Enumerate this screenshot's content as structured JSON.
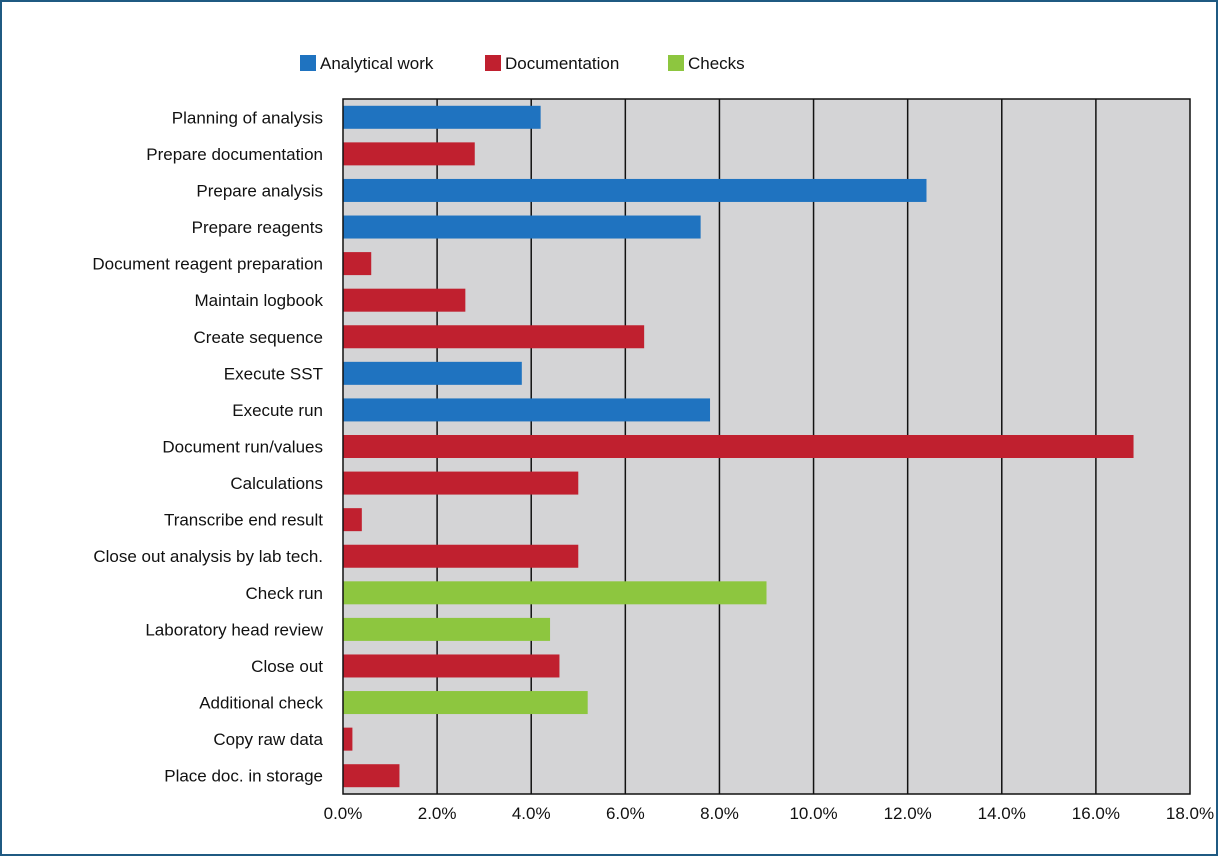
{
  "chart_data": {
    "type": "bar",
    "orientation": "horizontal",
    "title": "",
    "xlabel": "",
    "ylabel": "",
    "xlim": [
      0,
      18
    ],
    "x_ticks": [
      0,
      2,
      4,
      6,
      8,
      10,
      12,
      14,
      16,
      18
    ],
    "x_tick_labels": [
      "0.0%",
      "2.0%",
      "4.0%",
      "6.0%",
      "8.0%",
      "10.0%",
      "12.0%",
      "14.0%",
      "16.0%",
      "18.0%"
    ],
    "grid": "vertical",
    "legend_position": "top",
    "series": [
      {
        "name": "Analytical work",
        "color": "#1f73c0"
      },
      {
        "name": "Documentation",
        "color": "#c0202f"
      },
      {
        "name": "Checks",
        "color": "#8dc63f"
      }
    ],
    "bars": [
      {
        "label": "Planning of analysis",
        "value": 4.2,
        "series": "Analytical work"
      },
      {
        "label": "Prepare documentation",
        "value": 2.8,
        "series": "Documentation"
      },
      {
        "label": "Prepare analysis",
        "value": 12.4,
        "series": "Analytical work"
      },
      {
        "label": "Prepare reagents",
        "value": 7.6,
        "series": "Analytical work"
      },
      {
        "label": "Document reagent preparation",
        "value": 0.6,
        "series": "Documentation"
      },
      {
        "label": "Maintain logbook",
        "value": 2.6,
        "series": "Documentation"
      },
      {
        "label": "Create sequence",
        "value": 6.4,
        "series": "Documentation"
      },
      {
        "label": "Execute SST",
        "value": 3.8,
        "series": "Analytical work"
      },
      {
        "label": "Execute run",
        "value": 7.8,
        "series": "Analytical work"
      },
      {
        "label": "Document run/values",
        "value": 16.8,
        "series": "Documentation"
      },
      {
        "label": "Calculations",
        "value": 5.0,
        "series": "Documentation"
      },
      {
        "label": "Transcribe end result",
        "value": 0.4,
        "series": "Documentation"
      },
      {
        "label": "Close out analysis by lab tech.",
        "value": 5.0,
        "series": "Documentation"
      },
      {
        "label": "Check run",
        "value": 9.0,
        "series": "Checks"
      },
      {
        "label": "Laboratory head review",
        "value": 4.4,
        "series": "Checks"
      },
      {
        "label": "Close out",
        "value": 4.6,
        "series": "Documentation"
      },
      {
        "label": "Additional check",
        "value": 5.2,
        "series": "Checks"
      },
      {
        "label": "Copy raw data",
        "value": 0.2,
        "series": "Documentation"
      },
      {
        "label": "Place doc. in storage",
        "value": 1.2,
        "series": "Documentation"
      }
    ],
    "plot_background": "#d4d4d6",
    "grid_color": "#111111"
  }
}
